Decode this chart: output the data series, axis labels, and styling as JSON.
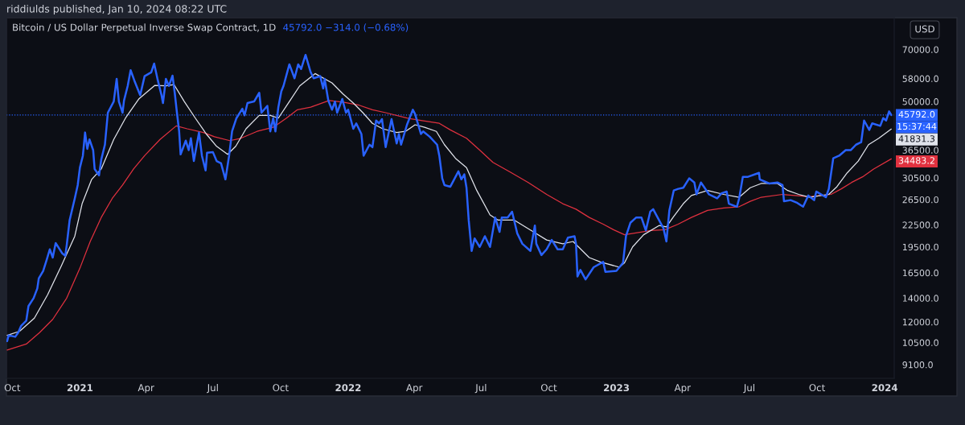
{
  "chart_data": {
    "type": "line",
    "title": "Bitcoin / US Dollar Perpetual Inverse Swap Contract, 1D",
    "subtitle": "45792.0 −314.0 (−0.68%)",
    "ylabel": "USD",
    "annotations": [
      "riddiulds published, Jan 10, 2024 08:22 UTC",
      {
        "text": "15:37:44",
        "x": "2024-01-10",
        "y": 45792.0
      }
    ],
    "log": "y",
    "xlim": [
      "2020-09-23",
      "2024-01-14"
    ],
    "xticks": [
      {
        "value": "2020-10-01",
        "label": "Oct"
      },
      {
        "value": "2021-01-01",
        "label": "2021"
      },
      {
        "value": "2021-04-01",
        "label": "Apr"
      },
      {
        "value": "2021-07-01",
        "label": "Jul"
      },
      {
        "value": "2021-10-01",
        "label": "Oct"
      },
      {
        "value": "2022-01-01",
        "label": "2022"
      },
      {
        "value": "2022-04-01",
        "label": "Apr"
      },
      {
        "value": "2022-07-01",
        "label": "Jul"
      },
      {
        "value": "2022-10-01",
        "label": "Oct"
      },
      {
        "value": "2023-01-01",
        "label": "2023"
      },
      {
        "value": "2023-04-01",
        "label": "Apr"
      },
      {
        "value": "2023-07-01",
        "label": "Jul"
      },
      {
        "value": "2023-10-01",
        "label": "Oct"
      },
      {
        "value": "2024-01-01",
        "label": "2024"
      }
    ],
    "ylim": [
      8330,
      86000
    ],
    "yticks": [
      {
        "value": 9100,
        "label": "9100.0"
      },
      {
        "value": 10500,
        "label": "10500.0"
      },
      {
        "value": 12000,
        "label": "12000.0"
      },
      {
        "value": 14000,
        "label": "14000.0"
      },
      {
        "value": 16500,
        "label": "16500.0"
      },
      {
        "value": 19500,
        "label": "19500.0"
      },
      {
        "value": 22500,
        "label": "22500.0"
      },
      {
        "value": 26500,
        "label": "26500.0"
      },
      {
        "value": 30500,
        "label": "30500.0"
      },
      {
        "value": 36500,
        "label": "36500.0"
      },
      {
        "value": 50000,
        "label": "50000.0"
      },
      {
        "value": 58000,
        "label": "58000.0"
      },
      {
        "value": 70000,
        "label": "70000.0"
      }
    ],
    "ref_lines": [
      {
        "axis": "y",
        "value": 45792.0,
        "color": "#2962ff",
        "line_style": "dotted"
      }
    ],
    "series": [
      {
        "color": "#2962ff",
        "x": [
          "2020-09-24",
          "2020-09-26",
          "2020-10-05",
          "2020-10-09",
          "2020-10-13",
          "2020-10-20",
          "2020-10-23",
          "2020-10-30",
          "2020-11-04",
          "2020-11-06",
          "2020-11-12",
          "2020-11-17",
          "2020-11-21",
          "2020-11-25",
          "2020-11-29",
          "2020-12-08",
          "2020-12-12",
          "2020-12-14",
          "2020-12-18",
          "2020-12-25",
          "2020-12-29",
          "2021-01-01",
          "2021-01-05",
          "2021-01-08",
          "2021-01-11",
          "2021-01-14",
          "2021-01-19",
          "2021-01-21",
          "2021-01-27",
          "2021-01-30",
          "2021-02-04",
          "2021-02-08",
          "2021-02-16",
          "2021-02-20",
          "2021-02-23",
          "2021-02-28",
          "2021-03-02",
          "2021-03-07",
          "2021-03-11",
          "2021-03-16",
          "2021-03-24",
          "2021-03-30",
          "2021-04-08",
          "2021-04-12",
          "2021-04-17",
          "2021-04-22",
          "2021-04-24",
          "2021-04-28",
          "2021-05-02",
          "2021-05-07",
          "2021-05-10",
          "2021-05-13",
          "2021-05-16",
          "2021-05-18",
          "2021-05-25",
          "2021-05-29",
          "2021-06-01",
          "2021-06-05",
          "2021-06-12",
          "2021-06-16",
          "2021-06-21",
          "2021-06-23",
          "2021-07-01",
          "2021-07-06",
          "2021-07-12",
          "2021-07-18",
          "2021-07-23",
          "2021-07-27",
          "2021-08-02",
          "2021-08-10",
          "2021-08-13",
          "2021-08-17",
          "2021-08-26",
          "2021-09-02",
          "2021-09-05",
          "2021-09-13",
          "2021-09-17",
          "2021-09-21",
          "2021-09-24",
          "2021-09-28",
          "2021-10-02",
          "2021-10-05",
          "2021-10-13",
          "2021-10-20",
          "2021-10-25",
          "2021-10-29",
          "2021-11-04",
          "2021-11-11",
          "2021-11-15",
          "2021-11-24",
          "2021-11-28",
          "2021-11-30",
          "2021-12-05",
          "2021-12-10",
          "2021-12-14",
          "2021-12-17",
          "2021-12-24",
          "2021-12-29",
          "2022-01-01",
          "2022-01-08",
          "2022-01-12",
          "2022-01-19",
          "2022-01-22",
          "2022-01-30",
          "2022-02-03",
          "2022-02-08",
          "2022-02-12",
          "2022-02-16",
          "2022-02-21",
          "2022-03-01",
          "2022-03-08",
          "2022-03-11",
          "2022-03-14",
          "2022-03-22",
          "2022-03-30",
          "2022-04-02",
          "2022-04-10",
          "2022-04-13",
          "2022-04-22",
          "2022-05-02",
          "2022-05-05",
          "2022-05-09",
          "2022-05-12",
          "2022-05-20",
          "2022-05-31",
          "2022-06-04",
          "2022-06-08",
          "2022-06-11",
          "2022-06-14",
          "2022-06-18",
          "2022-06-22",
          "2022-06-29",
          "2022-07-06",
          "2022-07-13",
          "2022-07-20",
          "2022-07-26",
          "2022-07-29",
          "2022-08-06",
          "2022-08-12",
          "2022-08-19",
          "2022-08-26",
          "2022-09-06",
          "2022-09-12",
          "2022-09-14",
          "2022-09-21",
          "2022-09-28",
          "2022-10-05",
          "2022-10-13",
          "2022-10-20",
          "2022-10-27",
          "2022-11-05",
          "2022-11-07",
          "2022-11-09",
          "2022-11-13",
          "2022-11-20",
          "2022-12-01",
          "2022-12-14",
          "2022-12-17",
          "2023-01-01",
          "2023-01-10",
          "2023-01-14",
          "2023-01-20",
          "2023-01-28",
          "2023-02-04",
          "2023-02-10",
          "2023-02-16",
          "2023-02-20",
          "2023-02-26",
          "2023-03-06",
          "2023-03-10",
          "2023-03-14",
          "2023-03-20",
          "2023-03-26",
          "2023-04-02",
          "2023-04-10",
          "2023-04-17",
          "2023-04-20",
          "2023-04-26",
          "2023-04-30",
          "2023-05-07",
          "2023-05-18",
          "2023-05-24",
          "2023-05-31",
          "2023-06-03",
          "2023-06-14",
          "2023-06-17",
          "2023-06-22",
          "2023-06-29",
          "2023-07-14",
          "2023-07-15",
          "2023-07-28",
          "2023-08-08",
          "2023-08-15",
          "2023-08-17",
          "2023-08-26",
          "2023-09-03",
          "2023-09-12",
          "2023-09-19",
          "2023-09-27",
          "2023-09-30",
          "2023-10-13",
          "2023-10-17",
          "2023-10-23",
          "2023-10-31",
          "2023-11-09",
          "2023-11-16",
          "2023-11-23",
          "2023-11-30",
          "2023-12-04",
          "2023-12-11",
          "2023-12-15",
          "2023-12-26",
          "2023-12-30",
          "2024-01-03",
          "2024-01-07",
          "2024-01-10"
        ],
        "values": [
          10600,
          11000,
          10900,
          11200,
          11700,
          12100,
          13300,
          14000,
          14900,
          15900,
          16700,
          18000,
          19200,
          18200,
          20000,
          18700,
          18400,
          19700,
          23200,
          26700,
          29100,
          32600,
          35200,
          40900,
          36800,
          39100,
          36500,
          32300,
          31000,
          34300,
          37800,
          46500,
          50000,
          57900,
          50000,
          46500,
          50300,
          55300,
          61200,
          57300,
          52100,
          58900,
          60400,
          63900,
          57300,
          52100,
          49500,
          57900,
          55300,
          59100,
          52900,
          46500,
          41200,
          35500,
          38800,
          36500,
          39400,
          34000,
          40900,
          35200,
          32000,
          35900,
          36000,
          34000,
          33500,
          30200,
          35200,
          41200,
          44900,
          47700,
          45700,
          49500,
          50000,
          52900,
          46500,
          48600,
          41200,
          44900,
          41200,
          48200,
          53400,
          55300,
          63600,
          58100,
          63600,
          61700,
          67600,
          60400,
          58100,
          58900,
          54400,
          57900,
          50300,
          47400,
          50000,
          46500,
          50800,
          46500,
          47400,
          41900,
          43400,
          40500,
          35200,
          37800,
          37200,
          44200,
          43400,
          44600,
          37200,
          44600,
          38100,
          40500,
          37800,
          43000,
          47400,
          46100,
          40500,
          41200,
          39800,
          37800,
          35200,
          30400,
          29100,
          28800,
          31800,
          30200,
          31200,
          28600,
          23200,
          19000,
          20600,
          19500,
          20900,
          19500,
          23600,
          21500,
          23600,
          23600,
          24500,
          21300,
          19900,
          19000,
          22400,
          19900,
          18500,
          19200,
          20400,
          19200,
          19200,
          20700,
          20900,
          19900,
          16100,
          16800,
          15800,
          17100,
          17700,
          16600,
          16700,
          17600,
          20900,
          22800,
          23600,
          23600,
          21700,
          24500,
          24900,
          23600,
          22000,
          20200,
          24700,
          28100,
          28400,
          28600,
          30400,
          29600,
          27400,
          29600,
          28800,
          27400,
          26700,
          27600,
          27900,
          25800,
          25300,
          26700,
          30700,
          30700,
          31500,
          30200,
          29400,
          29600,
          29100,
          26200,
          26400,
          26000,
          25300,
          27200,
          26400,
          27900,
          26900,
          28400,
          34600,
          35200,
          36500,
          36500,
          37800,
          38400,
          44200,
          41600,
          43400,
          42700,
          44900,
          44200,
          46900,
          45792.0
        ],
        "value_labels": [
          null,
          null,
          null,
          null,
          null,
          null,
          null,
          null,
          null,
          null,
          null,
          null,
          null,
          null,
          null,
          null,
          null,
          null,
          null,
          null,
          null,
          null,
          null,
          null,
          null,
          null,
          null,
          null,
          null,
          null,
          null,
          null,
          null,
          null,
          null,
          null,
          null,
          null,
          null,
          null,
          null,
          null,
          null,
          null,
          null,
          null,
          null,
          null,
          null,
          null,
          null,
          null,
          null,
          null,
          null,
          null,
          null,
          null,
          null,
          null,
          null,
          null,
          null,
          null,
          null,
          null,
          null,
          null,
          null,
          null,
          null,
          null,
          null,
          null,
          null,
          null,
          null,
          null,
          null,
          null,
          null,
          null,
          null,
          null,
          null,
          null,
          null,
          null,
          null,
          null,
          null,
          null,
          null,
          null,
          null,
          null,
          null,
          null,
          null,
          null,
          null,
          null,
          null,
          null,
          null,
          null,
          null,
          null,
          null,
          null,
          null,
          null,
          null,
          null,
          null,
          null,
          null,
          null,
          null,
          null,
          null,
          null,
          null,
          null,
          null,
          null,
          null,
          null,
          null,
          null,
          null,
          null,
          null,
          null,
          null,
          null,
          null,
          null,
          null,
          null,
          null,
          null,
          null,
          null,
          null,
          null,
          null,
          null,
          null,
          null,
          null,
          null,
          null,
          null,
          null,
          null,
          null,
          null,
          null,
          null,
          null,
          null,
          null,
          null,
          null,
          null,
          null,
          null,
          null,
          null,
          null,
          null,
          null,
          null,
          null,
          null,
          null,
          null,
          null,
          null,
          null,
          null,
          null,
          null,
          null,
          null,
          null,
          null,
          null,
          null,
          null,
          null,
          null,
          null,
          null,
          null,
          null,
          null,
          null,
          null,
          null,
          null,
          null,
          null,
          null,
          null,
          null,
          null,
          null,
          null,
          null,
          null,
          null,
          null,
          null,
          "45792.0"
        ]
      },
      {
        "color": "#e0e3eb",
        "x": [
          "2020-09-24",
          "2020-10-11",
          "2020-10-31",
          "2020-11-18",
          "2020-12-07",
          "2020-12-25",
          "2021-01-04",
          "2021-01-17",
          "2021-01-30",
          "2021-02-16",
          "2021-03-04",
          "2021-03-22",
          "2021-04-13",
          "2021-04-28",
          "2021-05-09",
          "2021-05-23",
          "2021-06-07",
          "2021-06-22",
          "2021-07-06",
          "2021-07-21",
          "2021-08-01",
          "2021-08-15",
          "2021-09-02",
          "2021-09-17",
          "2021-09-28",
          "2021-10-13",
          "2021-10-27",
          "2021-11-17",
          "2021-12-10",
          "2021-12-25",
          "2022-01-08",
          "2022-01-21",
          "2022-02-03",
          "2022-02-17",
          "2022-03-08",
          "2022-03-20",
          "2022-04-02",
          "2022-04-15",
          "2022-05-01",
          "2022-05-12",
          "2022-05-27",
          "2022-06-11",
          "2022-06-25",
          "2022-07-13",
          "2022-07-24",
          "2022-08-15",
          "2022-09-10",
          "2022-09-28",
          "2022-10-20",
          "2022-11-03",
          "2022-11-25",
          "2022-12-10",
          "2023-01-05",
          "2023-01-12",
          "2023-01-23",
          "2023-02-07",
          "2023-02-28",
          "2023-03-10",
          "2023-03-19",
          "2023-04-02",
          "2023-04-13",
          "2023-05-05",
          "2023-05-27",
          "2023-06-17",
          "2023-07-02",
          "2023-07-17",
          "2023-08-08",
          "2023-08-22",
          "2023-09-06",
          "2023-09-21",
          "2023-10-17",
          "2023-10-28",
          "2023-11-11",
          "2023-11-26",
          "2023-12-10",
          "2023-12-24",
          "2024-01-10"
        ],
        "values": [
          11000,
          11300,
          12300,
          14300,
          17300,
          20900,
          25800,
          30200,
          32300,
          39100,
          44900,
          50800,
          55500,
          55300,
          55800,
          50000,
          44900,
          40500,
          37400,
          35500,
          37400,
          41900,
          45700,
          45700,
          44900,
          50000,
          55300,
          59900,
          56400,
          52500,
          49500,
          46500,
          43400,
          41900,
          40900,
          41200,
          43000,
          42300,
          41200,
          37800,
          34600,
          32600,
          28100,
          24000,
          23200,
          23200,
          21500,
          20400,
          19900,
          20200,
          18200,
          17700,
          17100,
          17600,
          19500,
          21100,
          22400,
          22200,
          23600,
          25800,
          27200,
          28100,
          27400,
          26900,
          28600,
          29400,
          29400,
          28100,
          27400,
          26900,
          27400,
          28800,
          31500,
          34000,
          37800,
          39400,
          41831.3
        ],
        "value_labels": [
          null,
          null,
          null,
          null,
          null,
          null,
          null,
          null,
          null,
          null,
          null,
          null,
          null,
          null,
          null,
          null,
          null,
          null,
          null,
          null,
          null,
          null,
          null,
          null,
          null,
          null,
          null,
          null,
          null,
          null,
          null,
          null,
          null,
          null,
          null,
          null,
          null,
          null,
          null,
          null,
          null,
          null,
          null,
          null,
          null,
          null,
          null,
          null,
          null,
          null,
          null,
          null,
          null,
          null,
          null,
          null,
          null,
          null,
          null,
          null,
          null,
          null,
          null,
          null,
          null,
          null,
          null,
          null,
          null,
          null,
          null,
          null,
          null,
          null,
          null,
          null,
          "41831.3"
        ]
      },
      {
        "color": "#e0313f",
        "x": [
          "2020-09-24",
          "2020-10-20",
          "2020-11-07",
          "2020-11-25",
          "2020-12-14",
          "2021-01-01",
          "2021-01-15",
          "2021-01-30",
          "2021-02-14",
          "2021-02-28",
          "2021-03-15",
          "2021-03-30",
          "2021-04-20",
          "2021-05-12",
          "2021-05-27",
          "2021-06-18",
          "2021-07-03",
          "2021-07-24",
          "2021-08-08",
          "2021-08-30",
          "2021-09-21",
          "2021-10-09",
          "2021-10-24",
          "2021-11-11",
          "2021-12-06",
          "2021-12-25",
          "2022-01-16",
          "2022-02-03",
          "2022-02-21",
          "2022-03-22",
          "2022-04-10",
          "2022-05-05",
          "2022-05-20",
          "2022-06-11",
          "2022-06-29",
          "2022-07-17",
          "2022-08-08",
          "2022-09-03",
          "2022-09-28",
          "2022-10-20",
          "2022-11-07",
          "2022-11-25",
          "2022-12-14",
          "2022-12-28",
          "2023-01-12",
          "2023-02-17",
          "2023-03-08",
          "2023-03-26",
          "2023-04-13",
          "2023-05-05",
          "2023-05-27",
          "2023-06-17",
          "2023-07-02",
          "2023-07-17",
          "2023-08-15",
          "2023-09-21",
          "2023-10-20",
          "2023-11-03",
          "2023-11-17",
          "2023-12-02",
          "2023-12-17",
          "2024-01-10"
        ],
        "values": [
          10000,
          10400,
          11200,
          12200,
          14000,
          17000,
          20200,
          23600,
          26700,
          29100,
          32300,
          35200,
          39100,
          42700,
          41900,
          40900,
          39800,
          38800,
          39400,
          41200,
          42300,
          44900,
          47400,
          48200,
          50300,
          49800,
          48800,
          47400,
          46500,
          44900,
          44200,
          43400,
          41600,
          39400,
          36500,
          33700,
          31800,
          29600,
          27400,
          25800,
          24900,
          23600,
          22600,
          21800,
          21100,
          21700,
          21800,
          22600,
          23600,
          24700,
          25100,
          25300,
          26200,
          26900,
          27400,
          27000,
          27400,
          28400,
          29600,
          30700,
          32300,
          34483.2
        ],
        "value_labels": [
          null,
          null,
          null,
          null,
          null,
          null,
          null,
          null,
          null,
          null,
          null,
          null,
          null,
          null,
          null,
          null,
          null,
          null,
          null,
          null,
          null,
          null,
          null,
          null,
          null,
          null,
          null,
          null,
          null,
          null,
          null,
          null,
          null,
          null,
          null,
          null,
          null,
          null,
          null,
          null,
          null,
          null,
          null,
          null,
          null,
          null,
          null,
          null,
          null,
          null,
          null,
          null,
          null,
          null,
          null,
          null,
          null,
          null,
          null,
          null,
          null,
          "34483.2"
        ]
      }
    ]
  }
}
